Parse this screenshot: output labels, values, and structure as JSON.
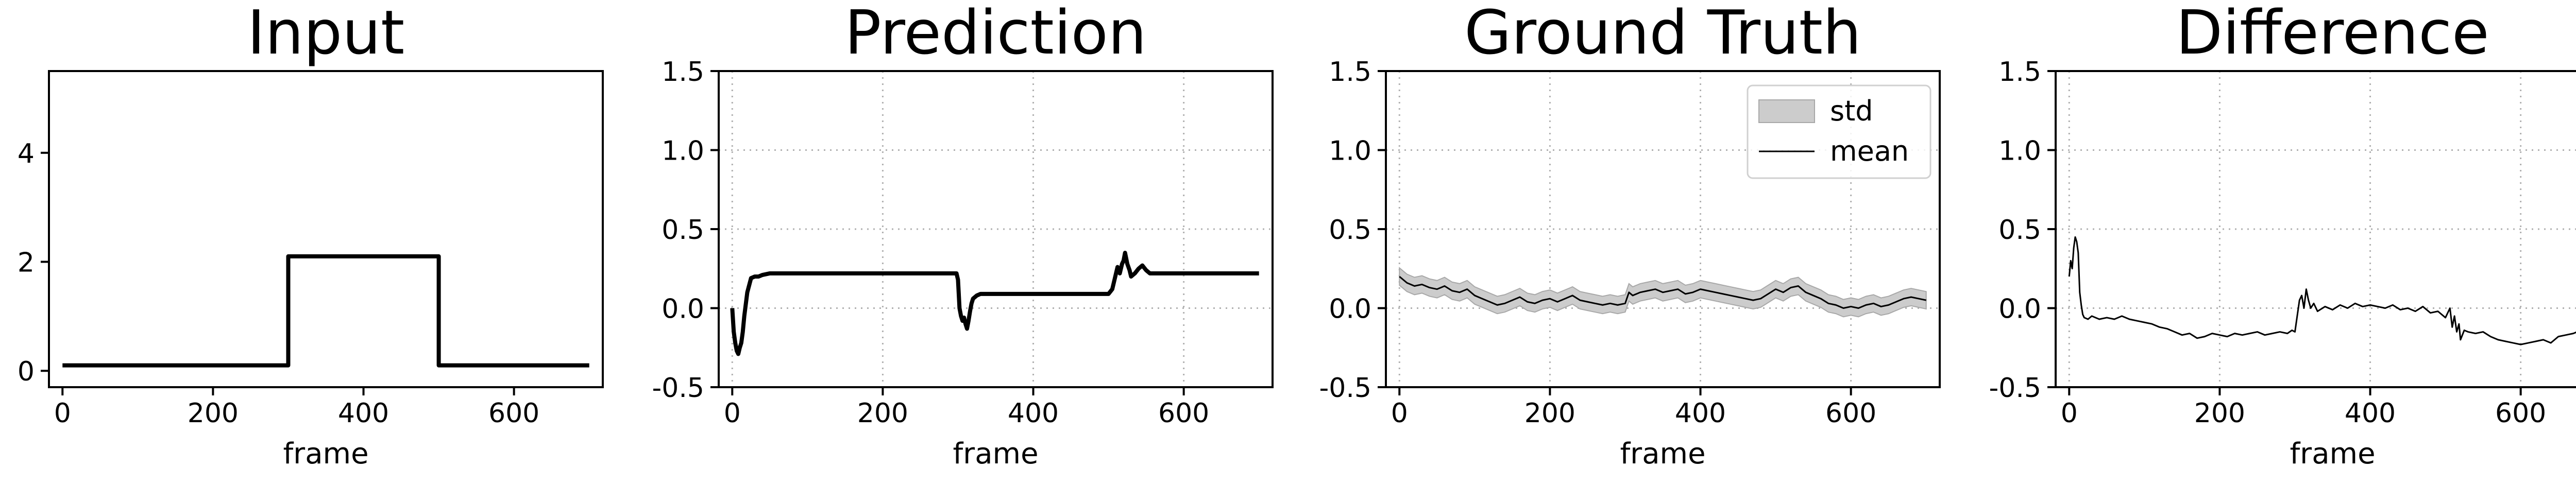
{
  "chart_data": [
    {
      "type": "line",
      "title": "Input",
      "xlabel": "frame",
      "ylabel": "",
      "xlim": [
        -18,
        718
      ],
      "ylim": [
        -0.3,
        5.5
      ],
      "xticks": [
        0,
        200,
        400,
        600
      ],
      "yticks": [
        0,
        2,
        4
      ],
      "grid": false,
      "series": [
        {
          "color": "#000000",
          "x": [
            0,
            300,
            300,
            500,
            500,
            700
          ],
          "y": [
            0.1,
            0.1,
            2.1,
            2.1,
            0.1,
            0.1
          ]
        }
      ]
    },
    {
      "type": "line",
      "title": "Prediction",
      "xlabel": "frame",
      "ylabel": "",
      "xlim": [
        -18,
        718
      ],
      "ylim": [
        -0.5,
        1.5
      ],
      "xticks": [
        0,
        200,
        400,
        600
      ],
      "yticks": [
        -0.5,
        0.0,
        0.5,
        1.0,
        1.5
      ],
      "grid": true,
      "series": [
        {
          "color": "#000000",
          "x": [
            0,
            2,
            4,
            6,
            8,
            10,
            12,
            14,
            16,
            20,
            25,
            30,
            35,
            40,
            50,
            60,
            100,
            150,
            200,
            250,
            298,
            300,
            302,
            304,
            306,
            308,
            310,
            312,
            314,
            316,
            318,
            320,
            325,
            330,
            340,
            360,
            400,
            450,
            500,
            505,
            508,
            510,
            512,
            515,
            518,
            520,
            522,
            525,
            528,
            530,
            535,
            540,
            545,
            550,
            555,
            560,
            570,
            600,
            650,
            700
          ],
          "y": [
            0.0,
            -0.15,
            -0.22,
            -0.27,
            -0.29,
            -0.25,
            -0.22,
            -0.15,
            -0.05,
            0.1,
            0.19,
            0.2,
            0.2,
            0.21,
            0.22,
            0.22,
            0.22,
            0.22,
            0.22,
            0.22,
            0.22,
            0.18,
            0.0,
            -0.05,
            -0.08,
            -0.06,
            -0.1,
            -0.13,
            -0.08,
            -0.02,
            0.03,
            0.06,
            0.08,
            0.09,
            0.09,
            0.09,
            0.09,
            0.09,
            0.09,
            0.12,
            0.18,
            0.22,
            0.26,
            0.22,
            0.28,
            0.3,
            0.35,
            0.28,
            0.24,
            0.2,
            0.22,
            0.25,
            0.27,
            0.24,
            0.22,
            0.22,
            0.22,
            0.22,
            0.22,
            0.22
          ]
        }
      ]
    },
    {
      "type": "area",
      "title": "Ground Truth",
      "xlabel": "frame",
      "ylabel": "",
      "xlim": [
        -18,
        718
      ],
      "ylim": [
        -0.5,
        1.5
      ],
      "xticks": [
        0,
        200,
        400,
        600
      ],
      "yticks": [
        -0.5,
        0.0,
        0.5,
        1.0,
        1.5
      ],
      "grid": true,
      "legend": {
        "position": "top-right",
        "entries": [
          "std",
          "mean"
        ]
      },
      "series": [
        {
          "name": "mean",
          "color": "#000000",
          "x": [
            0,
            10,
            20,
            30,
            40,
            50,
            60,
            70,
            80,
            90,
            100,
            110,
            120,
            130,
            140,
            150,
            160,
            170,
            180,
            190,
            200,
            210,
            220,
            230,
            240,
            250,
            260,
            270,
            280,
            290,
            300,
            305,
            310,
            320,
            330,
            340,
            350,
            360,
            370,
            380,
            390,
            400,
            410,
            420,
            430,
            440,
            450,
            460,
            470,
            480,
            490,
            500,
            510,
            520,
            530,
            540,
            550,
            560,
            570,
            580,
            590,
            600,
            610,
            620,
            630,
            640,
            650,
            660,
            670,
            680,
            690,
            700
          ],
          "y": [
            0.2,
            0.16,
            0.14,
            0.15,
            0.13,
            0.12,
            0.14,
            0.11,
            0.1,
            0.12,
            0.08,
            0.06,
            0.04,
            0.02,
            0.03,
            0.05,
            0.07,
            0.04,
            0.03,
            0.05,
            0.06,
            0.04,
            0.06,
            0.08,
            0.05,
            0.04,
            0.03,
            0.02,
            0.03,
            0.02,
            0.03,
            0.1,
            0.08,
            0.1,
            0.11,
            0.12,
            0.1,
            0.11,
            0.12,
            0.09,
            0.1,
            0.12,
            0.11,
            0.1,
            0.09,
            0.08,
            0.07,
            0.06,
            0.05,
            0.06,
            0.09,
            0.12,
            0.1,
            0.13,
            0.14,
            0.1,
            0.08,
            0.06,
            0.03,
            0.02,
            0.0,
            0.01,
            0.0,
            0.02,
            0.03,
            0.01,
            0.02,
            0.04,
            0.06,
            0.07,
            0.06,
            0.05
          ]
        },
        {
          "name": "std",
          "color": "#cccccc",
          "band": 0.055
        }
      ]
    },
    {
      "type": "line",
      "title": "Difference",
      "xlabel": "frame",
      "ylabel": "",
      "xlim": [
        -18,
        718
      ],
      "ylim": [
        -0.5,
        1.5
      ],
      "xticks": [
        0,
        200,
        400,
        600
      ],
      "yticks": [
        -0.5,
        0.0,
        0.5,
        1.0,
        1.5
      ],
      "grid": true,
      "series": [
        {
          "color": "#000000",
          "x": [
            0,
            2,
            4,
            6,
            8,
            10,
            12,
            14,
            16,
            18,
            20,
            25,
            30,
            40,
            50,
            60,
            70,
            80,
            90,
            100,
            110,
            120,
            130,
            140,
            150,
            160,
            170,
            180,
            190,
            200,
            210,
            220,
            230,
            240,
            250,
            260,
            270,
            280,
            290,
            296,
            300,
            303,
            306,
            309,
            312,
            315,
            318,
            321,
            325,
            330,
            340,
            350,
            360,
            370,
            380,
            390,
            400,
            410,
            420,
            430,
            440,
            450,
            460,
            470,
            480,
            490,
            500,
            503,
            506,
            509,
            512,
            515,
            518,
            520,
            525,
            530,
            540,
            550,
            560,
            570,
            580,
            590,
            600,
            610,
            620,
            630,
            640,
            650,
            660,
            670,
            680,
            690,
            700
          ],
          "y": [
            0.2,
            0.3,
            0.25,
            0.38,
            0.45,
            0.42,
            0.35,
            0.1,
            0.02,
            -0.04,
            -0.06,
            -0.07,
            -0.05,
            -0.07,
            -0.06,
            -0.07,
            -0.05,
            -0.07,
            -0.08,
            -0.09,
            -0.1,
            -0.12,
            -0.13,
            -0.15,
            -0.17,
            -0.16,
            -0.19,
            -0.18,
            -0.16,
            -0.17,
            -0.18,
            -0.16,
            -0.17,
            -0.16,
            -0.15,
            -0.17,
            -0.16,
            -0.15,
            -0.16,
            -0.14,
            -0.15,
            -0.05,
            0.05,
            0.08,
            0.0,
            0.12,
            0.05,
            0.0,
            0.03,
            -0.02,
            0.01,
            -0.01,
            0.02,
            0.0,
            0.03,
            0.01,
            0.02,
            0.01,
            0.0,
            0.02,
            -0.01,
            0.0,
            -0.02,
            0.01,
            -0.03,
            -0.02,
            -0.06,
            -0.03,
            0.0,
            -0.12,
            -0.05,
            -0.15,
            -0.1,
            -0.2,
            -0.14,
            -0.15,
            -0.16,
            -0.15,
            -0.18,
            -0.2,
            -0.21,
            -0.22,
            -0.23,
            -0.22,
            -0.21,
            -0.2,
            -0.22,
            -0.18,
            -0.17,
            -0.16,
            -0.14,
            -0.15,
            -0.16
          ]
        }
      ]
    }
  ]
}
